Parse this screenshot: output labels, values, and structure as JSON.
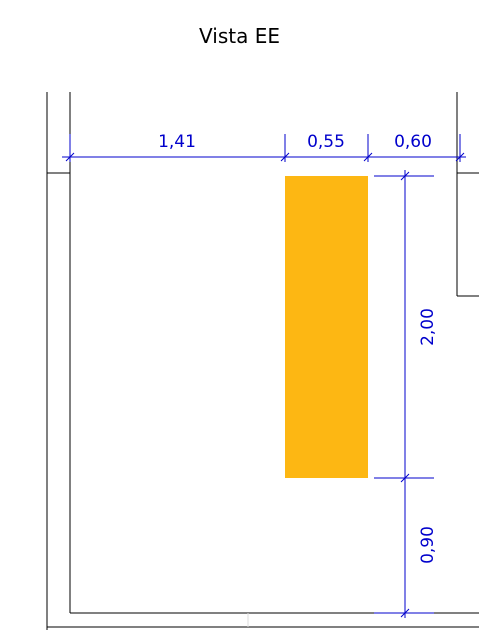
{
  "view": {
    "title": "Vista EE"
  },
  "dimensions": {
    "horizontal": [
      {
        "label": "1,41"
      },
      {
        "label": "0,55"
      },
      {
        "label": "0,60"
      }
    ],
    "vertical": [
      {
        "label": "2,00"
      },
      {
        "label": "0,90"
      }
    ]
  },
  "element": {
    "name": "opening",
    "color": "#FDB713"
  },
  "colors": {
    "dimension": "#0000CC",
    "walls": "#000000",
    "fill": "#FDB713"
  }
}
